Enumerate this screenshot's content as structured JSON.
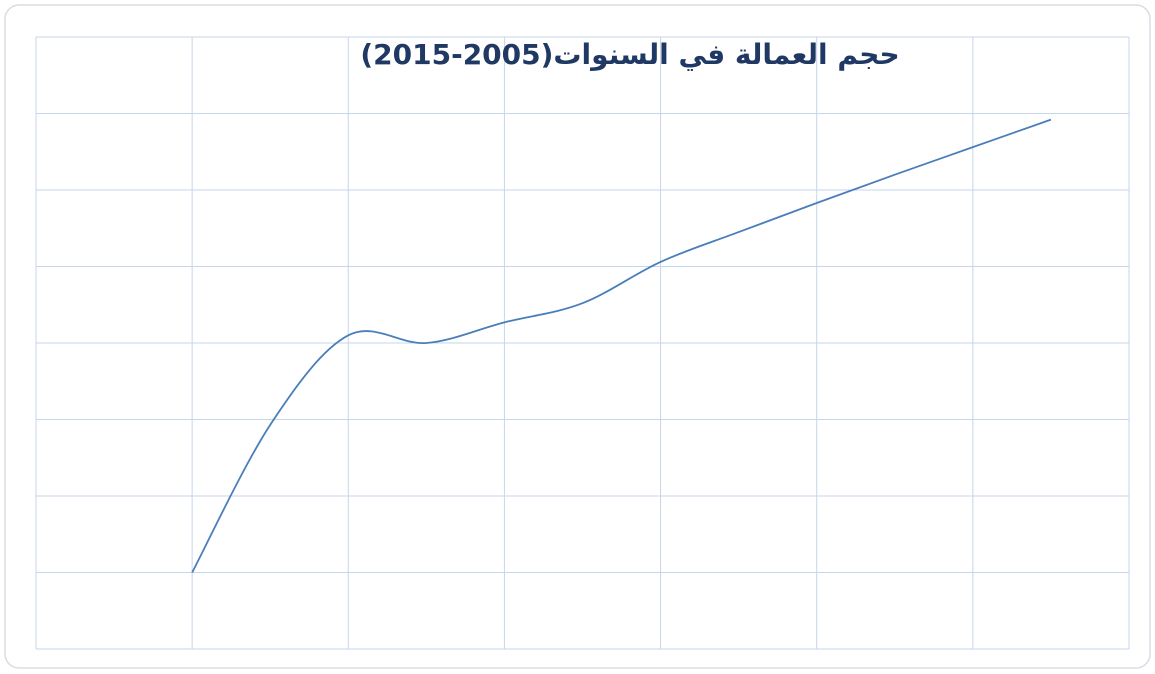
{
  "chart_data": {
    "type": "line",
    "title": "حجم العمالة في السنوات(2005-2015)",
    "x": [
      1,
      1.5,
      2,
      2.5,
      3,
      3.5,
      4,
      4.5,
      5,
      5.5,
      6,
      6.5
    ],
    "series": [
      {
        "color": "#4a7ebb",
        "values": [
          1.0,
          2.93,
          4.1,
          4.0,
          4.27,
          4.52,
          5.06,
          5.45,
          5.83,
          6.2,
          6.56,
          6.92
        ]
      }
    ],
    "xlim": [
      0,
      7
    ],
    "xticks": [
      0,
      1,
      2,
      3,
      4,
      5,
      6,
      7
    ],
    "ylim": [
      0,
      8
    ],
    "yticks": [
      0,
      1,
      2,
      3,
      4,
      5,
      6,
      7,
      8
    ],
    "grid": true,
    "smooth": true
  }
}
